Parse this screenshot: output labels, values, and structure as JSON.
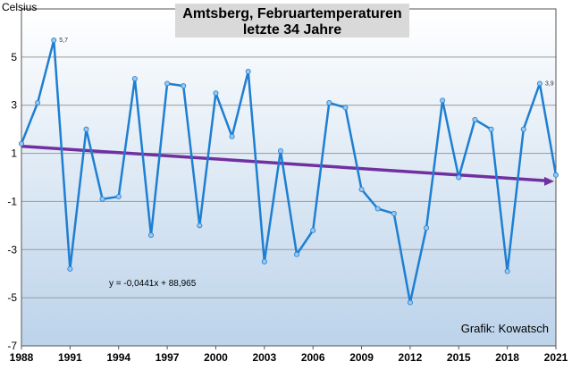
{
  "chart_data": {
    "type": "line",
    "title": "Amtsberg, Februartemperaturen",
    "subtitle": "letzte 34 Jahre",
    "ylabel": "Celsius",
    "xlabel": "",
    "ylim": [
      -7,
      7
    ],
    "xlim": [
      1988,
      2021
    ],
    "y_ticks": [
      -7,
      -5,
      -3,
      -1,
      1,
      3,
      5
    ],
    "x_ticks": [
      1988,
      1991,
      1994,
      1997,
      2000,
      2003,
      2006,
      2009,
      2012,
      2015,
      2018,
      2021
    ],
    "grid": true,
    "series": [
      {
        "x": [
          1988,
          1989,
          1990,
          1991,
          1992,
          1993,
          1994,
          1995,
          1996,
          1997,
          1998,
          1999,
          2000,
          2001,
          2002,
          2003,
          2004,
          2005,
          2006,
          2007,
          2008,
          2009,
          2010,
          2011,
          2012,
          2013,
          2014,
          2015,
          2016,
          2017,
          2018,
          2019,
          2020,
          2021
        ],
        "values": [
          1.4,
          3.1,
          5.7,
          -3.8,
          2.0,
          -0.9,
          -0.8,
          4.1,
          -2.4,
          3.9,
          3.8,
          -2.0,
          3.5,
          1.7,
          4.4,
          -3.5,
          1.1,
          -3.2,
          -2.2,
          3.1,
          2.9,
          -0.5,
          -1.3,
          -1.5,
          -5.2,
          -2.1,
          3.2,
          0.0,
          2.4,
          2.0,
          -3.9,
          2.0,
          3.9,
          0.1
        ],
        "color": "#1e7fd2"
      }
    ],
    "trendline": {
      "equation": "y = -0,0441x + 88,965",
      "slope": -0.0441,
      "intercept": 88.965,
      "color": "#7030a0"
    },
    "data_labels": [
      {
        "x": 1990,
        "text": "5,7"
      },
      {
        "x": 2020,
        "text": "3,9"
      }
    ],
    "credit": "Grafik: Kowatsch",
    "colors": {
      "plot_bg_top": "#ffffff",
      "plot_bg_bottom": "#bcd3ea",
      "grid": "#9a9a9a",
      "title_box": "#d9d9d9"
    }
  }
}
